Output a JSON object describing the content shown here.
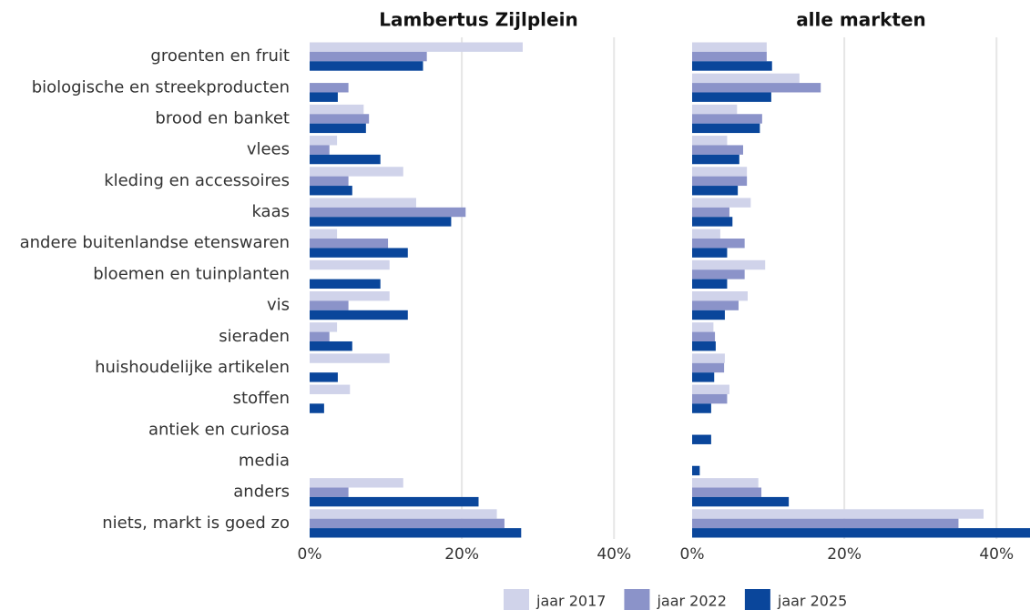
{
  "chart_data": [
    {
      "type": "bar",
      "orientation": "horizontal",
      "title": "Lambertus Zijlplein",
      "categories": [
        "groenten en fruit",
        "biologische en streekproducten",
        "brood en banket",
        "vlees",
        "kleding en accessoires",
        "kaas",
        "andere buitenlandse etenswaren",
        "bloemen en tuinplanten",
        "vis",
        "sieraden",
        "huishoudelijke artikelen",
        "stoffen",
        "antiek en curiosa",
        "media",
        "anders",
        "niets, markt is goed zo"
      ],
      "series": [
        {
          "name": "jaar 2017",
          "color": "#d0d3ea",
          "values": [
            28.0,
            0,
            7.1,
            3.6,
            12.3,
            14.0,
            3.6,
            10.5,
            10.5,
            3.6,
            10.5,
            5.3,
            0,
            0,
            12.3,
            24.6
          ]
        },
        {
          "name": "jaar 2022",
          "color": "#8b93c9",
          "values": [
            15.4,
            5.1,
            7.8,
            2.6,
            5.1,
            20.5,
            10.3,
            0,
            5.1,
            2.6,
            0,
            0,
            0,
            0,
            5.1,
            25.6
          ]
        },
        {
          "name": "jaar 2025",
          "color": "#0a469b",
          "values": [
            14.9,
            3.7,
            7.4,
            9.3,
            5.6,
            18.6,
            12.9,
            9.3,
            12.9,
            5.6,
            3.7,
            1.9,
            0,
            0,
            22.2,
            27.8
          ]
        }
      ],
      "xlim": [
        0,
        44.4
      ],
      "xticks": [
        {
          "value": 0,
          "label": "0%"
        },
        {
          "value": 20,
          "label": "20%"
        },
        {
          "value": 40,
          "label": "40%"
        }
      ],
      "grid": true,
      "legend": "bottom"
    },
    {
      "type": "bar",
      "orientation": "horizontal",
      "title": "alle markten",
      "series": [
        {
          "color": "#d0d3ea",
          "values": [
            9.8,
            14.1,
            5.9,
            4.6,
            7.2,
            7.7,
            3.7,
            9.6,
            7.3,
            2.8,
            4.3,
            4.9,
            0,
            0,
            8.7,
            38.3
          ]
        },
        {
          "color": "#8b93c9",
          "values": [
            9.8,
            16.9,
            9.2,
            6.7,
            7.2,
            4.9,
            6.9,
            6.9,
            6.1,
            3.0,
            4.2,
            4.6,
            0,
            0,
            9.1,
            35.0
          ]
        },
        {
          "color": "#0a469b",
          "values": [
            10.5,
            10.4,
            8.9,
            6.2,
            6.0,
            5.3,
            4.6,
            4.6,
            4.3,
            3.1,
            2.9,
            2.5,
            2.5,
            1.0,
            12.7,
            44.4
          ]
        }
      ],
      "xlim": [
        0,
        44.4
      ],
      "xticks": [
        {
          "value": 0,
          "label": "0%"
        },
        {
          "value": 20,
          "label": "20%"
        },
        {
          "value": 40,
          "label": "40%"
        }
      ],
      "grid": true
    }
  ]
}
